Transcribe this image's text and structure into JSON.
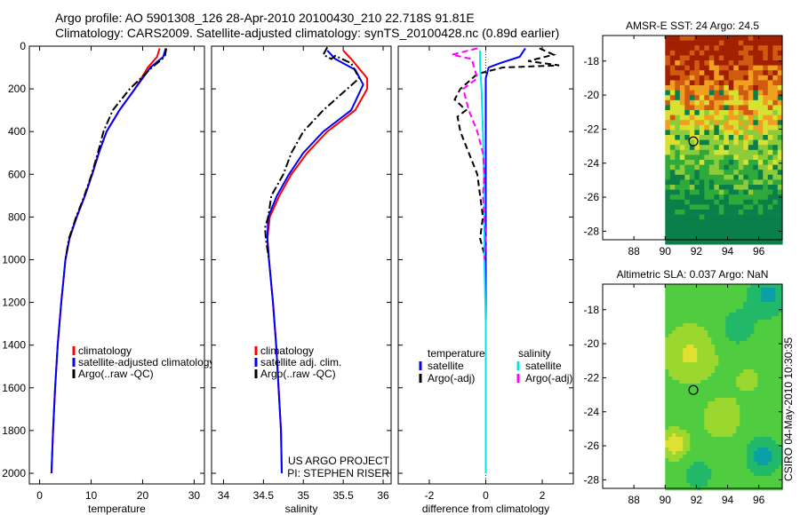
{
  "header": {
    "line1": "Argo profile: AO 5901308_126 28-Apr-2010 20100430_210 22.718S 91.81E",
    "line2": "Climatology: CARS2009. Satellite-adjusted climatology: synTS_20100428.nc (0.89d earlier)"
  },
  "side_credit": "CSIRO 04-May-2010 10:30:35",
  "colors": {
    "climatology": "#ff0000",
    "satellite": "#0000ff",
    "argo": "#000000",
    "salinity_satellite": "#00e5ee",
    "salinity_argo": "#ff00ff"
  },
  "chart_data": [
    {
      "type": "line",
      "id": "temperature",
      "title": "",
      "xlabel": "temperature",
      "ylabel": "",
      "xlim": [
        -2,
        32
      ],
      "ylim": [
        2050,
        0
      ],
      "xticks": [
        0,
        10,
        20,
        30
      ],
      "yticks": [
        0,
        200,
        400,
        600,
        800,
        1000,
        1200,
        1400,
        1600,
        1800,
        2000
      ],
      "legend_position": "lower-right",
      "series": [
        {
          "name": "climatology",
          "style": "solid",
          "color": "#ff0000",
          "points": [
            [
              23.3,
              10
            ],
            [
              22.8,
              50
            ],
            [
              21.0,
              100
            ],
            [
              18.5,
              200
            ],
            [
              15.5,
              300
            ],
            [
              13.0,
              400
            ],
            [
              11.5,
              500
            ],
            [
              10.2,
              600
            ],
            [
              8.8,
              700
            ],
            [
              7.2,
              800
            ],
            [
              5.8,
              900
            ],
            [
              5.0,
              1000
            ],
            [
              4.2,
              1200
            ],
            [
              3.5,
              1400
            ],
            [
              3.0,
              1600
            ],
            [
              2.6,
              1800
            ],
            [
              2.3,
              2000
            ]
          ]
        },
        {
          "name": "satellite-adjusted climatology",
          "style": "solid",
          "color": "#0000ff",
          "points": [
            [
              24.5,
              10
            ],
            [
              24.0,
              50
            ],
            [
              21.5,
              100
            ],
            [
              18.5,
              200
            ],
            [
              15.5,
              300
            ],
            [
              13.0,
              400
            ],
            [
              11.5,
              500
            ],
            [
              10.2,
              600
            ],
            [
              8.8,
              700
            ],
            [
              7.2,
              800
            ],
            [
              5.8,
              900
            ],
            [
              5.0,
              1000
            ],
            [
              4.2,
              1200
            ],
            [
              3.5,
              1400
            ],
            [
              3.0,
              1600
            ],
            [
              2.6,
              1800
            ],
            [
              2.3,
              2000
            ]
          ]
        },
        {
          "name": "Argo(..raw -QC)",
          "style": "dashdot",
          "color": "#000000",
          "points": [
            [
              24.6,
              10
            ],
            [
              24.3,
              50
            ],
            [
              21.8,
              100
            ],
            [
              17.5,
              200
            ],
            [
              14.2,
              300
            ],
            [
              12.4,
              400
            ],
            [
              11.3,
              500
            ],
            [
              10.1,
              600
            ],
            [
              8.7,
              700
            ],
            [
              7.1,
              800
            ],
            [
              5.7,
              900
            ],
            [
              5.0,
              1000
            ]
          ]
        }
      ],
      "legend": [
        {
          "label": "climatology",
          "color": "#ff0000"
        },
        {
          "label": "satellite-adjusted climatology",
          "color": "#0000ff"
        },
        {
          "label": "Argo(..raw -QC)",
          "color": "#000000"
        }
      ]
    },
    {
      "type": "line",
      "id": "salinity",
      "xlabel": "salinity",
      "xlim": [
        33.85,
        36.1
      ],
      "ylim": [
        2050,
        0
      ],
      "xticks": [
        34,
        34.5,
        35,
        35.5,
        36
      ],
      "yticks": [
        0,
        200,
        400,
        600,
        800,
        1000,
        1200,
        1400,
        1600,
        1800,
        2000
      ],
      "legend_position": "lower-right",
      "series": [
        {
          "name": "climatology",
          "style": "solid",
          "color": "#ff0000",
          "points": [
            [
              35.5,
              20
            ],
            [
              35.6,
              60
            ],
            [
              35.8,
              150
            ],
            [
              35.8,
              200
            ],
            [
              35.65,
              300
            ],
            [
              35.3,
              400
            ],
            [
              35.05,
              500
            ],
            [
              34.85,
              600
            ],
            [
              34.7,
              700
            ],
            [
              34.58,
              800
            ],
            [
              34.55,
              900
            ],
            [
              34.57,
              1000
            ],
            [
              34.62,
              1200
            ],
            [
              34.66,
              1400
            ],
            [
              34.69,
              1600
            ],
            [
              34.72,
              1800
            ],
            [
              34.73,
              2000
            ]
          ]
        },
        {
          "name": "satellite adj. clim.",
          "style": "solid",
          "color": "#0000ff",
          "points": [
            [
              35.3,
              20
            ],
            [
              35.4,
              60
            ],
            [
              35.65,
              110
            ],
            [
              35.75,
              180
            ],
            [
              35.6,
              300
            ],
            [
              35.25,
              400
            ],
            [
              35.0,
              500
            ],
            [
              34.82,
              600
            ],
            [
              34.67,
              700
            ],
            [
              34.56,
              800
            ],
            [
              34.55,
              900
            ],
            [
              34.57,
              1000
            ],
            [
              34.62,
              1200
            ],
            [
              34.66,
              1400
            ],
            [
              34.69,
              1600
            ],
            [
              34.72,
              1800
            ],
            [
              34.73,
              2000
            ]
          ]
        },
        {
          "name": "Argo(..raw -QC)",
          "style": "dashdot",
          "color": "#000000",
          "points": [
            [
              35.3,
              5
            ],
            [
              35.25,
              40
            ],
            [
              35.35,
              60
            ],
            [
              35.4,
              45
            ],
            [
              35.6,
              80
            ],
            [
              35.7,
              150
            ],
            [
              35.25,
              300
            ],
            [
              35.0,
              400
            ],
            [
              34.85,
              500
            ],
            [
              34.75,
              600
            ],
            [
              34.6,
              700
            ],
            [
              34.56,
              800
            ],
            [
              34.52,
              850
            ],
            [
              34.53,
              900
            ],
            [
              34.55,
              950
            ],
            [
              34.57,
              1000
            ]
          ]
        }
      ],
      "legend": [
        {
          "label": "climatology",
          "color": "#ff0000"
        },
        {
          "label": "satellite adj. clim.",
          "color": "#0000ff"
        },
        {
          "label": "Argo(..raw -QC)",
          "color": "#000000"
        }
      ],
      "annotation": [
        "US ARGO PROJECT",
        "PI: STEPHEN RISER"
      ]
    },
    {
      "type": "line",
      "id": "difference",
      "xlabel": "difference from climatology",
      "xlim": [
        -3.1,
        3.1
      ],
      "ylim": [
        2050,
        0
      ],
      "xticks": [
        -2,
        0,
        2
      ],
      "yticks": [
        0,
        200,
        400,
        600,
        800,
        1000,
        1200,
        1400,
        1600,
        1800,
        2000
      ],
      "zero_line": true,
      "legend_position": "lower-center",
      "series": [
        {
          "name": "temperature satellite",
          "style": "solid",
          "color": "#0000ff",
          "points": [
            [
              1.4,
              10
            ],
            [
              1.2,
              50
            ],
            [
              0.5,
              80
            ],
            [
              0.1,
              100
            ],
            [
              0.0,
              150
            ],
            [
              0.0,
              2000
            ]
          ]
        },
        {
          "name": "temperature Argo(-adj)",
          "style": "dashed",
          "color": "#000000",
          "points": [
            [
              1.9,
              10
            ],
            [
              2.4,
              40
            ],
            [
              1.5,
              70
            ],
            [
              2.6,
              90
            ],
            [
              0.6,
              100
            ],
            [
              -0.3,
              130
            ],
            [
              -0.9,
              200
            ],
            [
              -1.1,
              250
            ],
            [
              -0.7,
              300
            ],
            [
              -1.0,
              330
            ],
            [
              -0.9,
              400
            ],
            [
              -0.6,
              500
            ],
            [
              -0.3,
              600
            ],
            [
              -0.2,
              700
            ],
            [
              -0.1,
              800
            ],
            [
              -0.2,
              900
            ],
            [
              -0.1,
              950
            ],
            [
              0.0,
              1000
            ]
          ]
        },
        {
          "name": "salinity satellite",
          "style": "solid",
          "color": "#00e5ee",
          "points": [
            [
              -0.2,
              20
            ],
            [
              -0.2,
              100
            ],
            [
              -0.15,
              200
            ],
            [
              -0.1,
              400
            ],
            [
              -0.05,
              700
            ],
            [
              -0.05,
              1000
            ],
            [
              0.0,
              1300
            ],
            [
              0.0,
              2000
            ]
          ]
        },
        {
          "name": "salinity Argo(-adj)",
          "style": "dashed",
          "color": "#ff00ff",
          "points": [
            [
              -0.3,
              10
            ],
            [
              -1.2,
              40
            ],
            [
              -0.5,
              60
            ],
            [
              -0.3,
              150
            ],
            [
              -0.8,
              200
            ],
            [
              -0.6,
              300
            ],
            [
              -0.3,
              400
            ],
            [
              -0.1,
              500
            ],
            [
              -0.05,
              600
            ],
            [
              -0.1,
              700
            ],
            [
              -0.05,
              800
            ],
            [
              0.0,
              900
            ],
            [
              -0.05,
              1000
            ]
          ]
        }
      ],
      "legend_groups": [
        {
          "heading": "temperature",
          "items": [
            {
              "label": "satellite",
              "color": "#0000ff"
            },
            {
              "label": "Argo(-adj)",
              "color": "#000000"
            }
          ]
        },
        {
          "heading": "salinity",
          "items": [
            {
              "label": "satellite",
              "color": "#00e5ee"
            },
            {
              "label": "Argo(-adj)",
              "color": "#ff00ff"
            }
          ]
        }
      ]
    },
    {
      "type": "heatmap",
      "id": "sst_map",
      "title": "AMSR-E SST: 24 Argo: 24.5",
      "xlim": [
        86,
        97.5
      ],
      "ylim": [
        -28.5,
        -16.5
      ],
      "xticks": [
        88,
        90,
        92,
        94,
        96
      ],
      "yticks": [
        -18,
        -20,
        -22,
        -24,
        -26,
        -28
      ],
      "data_xmin": 90,
      "float_position": {
        "lon": 91.81,
        "lat": -22.718
      },
      "colormap": [
        "#0a7f4a",
        "#2faa3a",
        "#8ccb3a",
        "#d8e030",
        "#f0a020",
        "#d05a10",
        "#a02000"
      ]
    },
    {
      "type": "heatmap",
      "id": "sla_map",
      "title": "Altimetric SLA: 0.037 Argo: NaN",
      "xlim": [
        86,
        97.5
      ],
      "ylim": [
        -28.5,
        -16.5
      ],
      "xticks": [
        88,
        90,
        92,
        94,
        96
      ],
      "yticks": [
        -18,
        -20,
        -22,
        -24,
        -26,
        -28
      ],
      "data_xmin": 90,
      "float_position": {
        "lon": 91.81,
        "lat": -22.718
      },
      "colormap": [
        "#0aa0a8",
        "#22b86a",
        "#50cc40",
        "#9ad830",
        "#e0e030",
        "#f0a020"
      ]
    }
  ]
}
